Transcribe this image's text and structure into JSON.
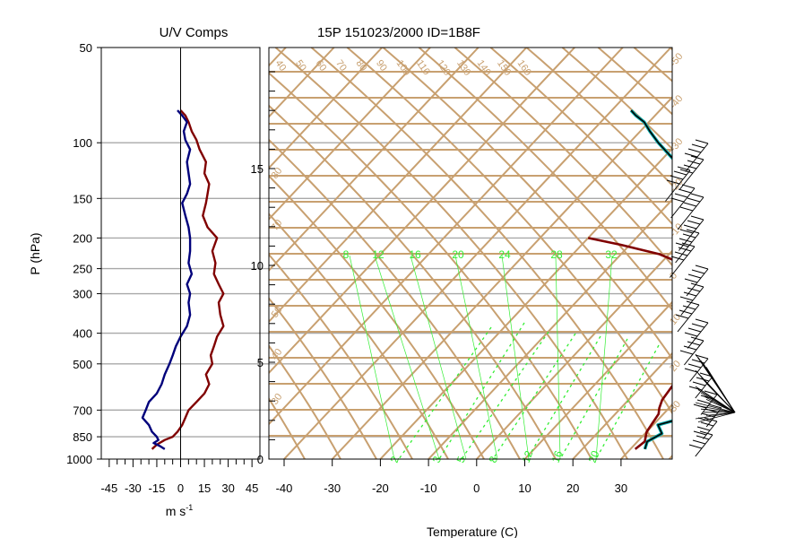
{
  "chart_data": [
    {
      "type": "line",
      "title": "U/V Comps",
      "xlabel": "m s",
      "xlabel_sup": "-1",
      "ylabel": "P (hPa)",
      "xlim": [
        -50,
        50
      ],
      "ylim": [
        1000,
        50
      ],
      "yscale": "log",
      "xticks": [
        -45,
        -30,
        -15,
        0,
        15,
        30,
        45
      ],
      "yticks": [
        50,
        100,
        150,
        200,
        250,
        300,
        400,
        500,
        700,
        850,
        1000
      ],
      "grid": true,
      "colors": {
        "u": "#800000",
        "v": "#00007b",
        "grid": "#a8a8a8"
      },
      "series": [
        {
          "key": "u",
          "p": [
            930,
            900,
            870,
            850,
            820,
            780,
            740,
            700,
            660,
            620,
            580,
            540,
            500,
            470,
            440,
            410,
            380,
            350,
            320,
            300,
            280,
            260,
            240,
            220,
            200,
            185,
            170,
            155,
            145,
            135,
            125,
            115,
            105,
            98,
            92,
            86,
            82,
            79
          ],
          "x": [
            -18,
            -15,
            -10,
            -5,
            -2,
            1,
            3,
            5,
            10,
            15,
            18,
            16,
            20,
            19,
            21,
            23,
            27,
            25,
            24,
            27,
            24,
            21,
            22,
            20,
            23,
            17,
            14,
            16,
            17,
            18,
            15,
            16,
            12,
            10,
            7,
            5,
            3,
            0
          ]
        },
        {
          "key": "v",
          "p": [
            930,
            910,
            890,
            870,
            850,
            820,
            780,
            740,
            700,
            660,
            620,
            580,
            540,
            500,
            470,
            440,
            410,
            380,
            350,
            320,
            300,
            280,
            260,
            240,
            220,
            200,
            185,
            170,
            155,
            145,
            135,
            125,
            115,
            105,
            98,
            92,
            86,
            82,
            79
          ],
          "x": [
            -10,
            -13,
            -17,
            -14,
            -15,
            -18,
            -20,
            -24,
            -22,
            -20,
            -15,
            -12,
            -10,
            -7,
            -5,
            -3,
            0,
            4,
            6,
            5,
            6,
            4,
            7,
            5,
            6,
            6,
            5,
            3,
            1,
            4,
            6,
            5,
            4,
            6,
            3,
            2,
            4,
            1,
            -2
          ]
        }
      ]
    },
    {
      "type": "line",
      "title": "15P 151023/2000 ID=1B8F",
      "xlabel": "Temperature (C)",
      "xlim": [
        -43,
        43
      ],
      "xticks": [
        -40,
        -30,
        -20,
        -10,
        0,
        10,
        20,
        30
      ],
      "height_ticks": [
        0,
        5,
        10,
        15
      ],
      "colors": {
        "temperature": "#800000",
        "dewpoint": "#000000",
        "dewpoint_halo": "#00aaaa",
        "isopleth": "#c8a070",
        "mixing_ratio": "#33ee33"
      },
      "isotherm_labels": [
        "-40",
        "-30",
        "-20",
        "-10",
        "0",
        "10",
        "20",
        "30",
        "40",
        "50"
      ],
      "adiabat_labels": [
        "40",
        "50",
        "60",
        "70",
        "80",
        "90",
        "100",
        "110",
        "120",
        "130",
        "140",
        "150",
        "160"
      ],
      "mixing_ratio_labels": [
        "8",
        "12",
        "16",
        "20",
        "24",
        "28",
        "32"
      ],
      "series": [
        {
          "key": "temperature",
          "p": [
            930,
            880,
            820,
            770,
            720,
            690,
            650,
            600,
            550,
            500,
            450,
            400,
            360,
            320,
            290,
            270,
            245,
            225,
            210,
            200
          ],
          "t": [
            31.0,
            31.5,
            30.0,
            29.5,
            29.0,
            28.0,
            27.0,
            26.5,
            26.0,
            25.5,
            25.5,
            25.0,
            23.0,
            19.5,
            15.5,
            12.0,
            6.0,
            -2.0,
            -12.0,
            -20.0
          ]
        },
        {
          "key": "dewpoint",
          "p": [
            930,
            880,
            830,
            780,
            740,
            700,
            660,
            620,
            580,
            540,
            500,
            460,
            420,
            380,
            350,
            320,
            290,
            260,
            235,
            210,
            190,
            170,
            155,
            140,
            125,
            112,
            100,
            92,
            86,
            82,
            79
          ],
          "t": [
            33.0,
            32.0,
            33.5,
            31.0,
            35.0,
            34.0,
            33.0,
            33.5,
            32.0,
            30.5,
            30.0,
            28.5,
            27.0,
            25.5,
            24.0,
            21.0,
            18.0,
            16.0,
            14.0,
            11.0,
            7.0,
            3.0,
            -1.0,
            -6.0,
            -12.0,
            -18.0,
            -24.0,
            -28.0,
            -31.0,
            -34.0,
            -36.0
          ]
        }
      ]
    }
  ]
}
